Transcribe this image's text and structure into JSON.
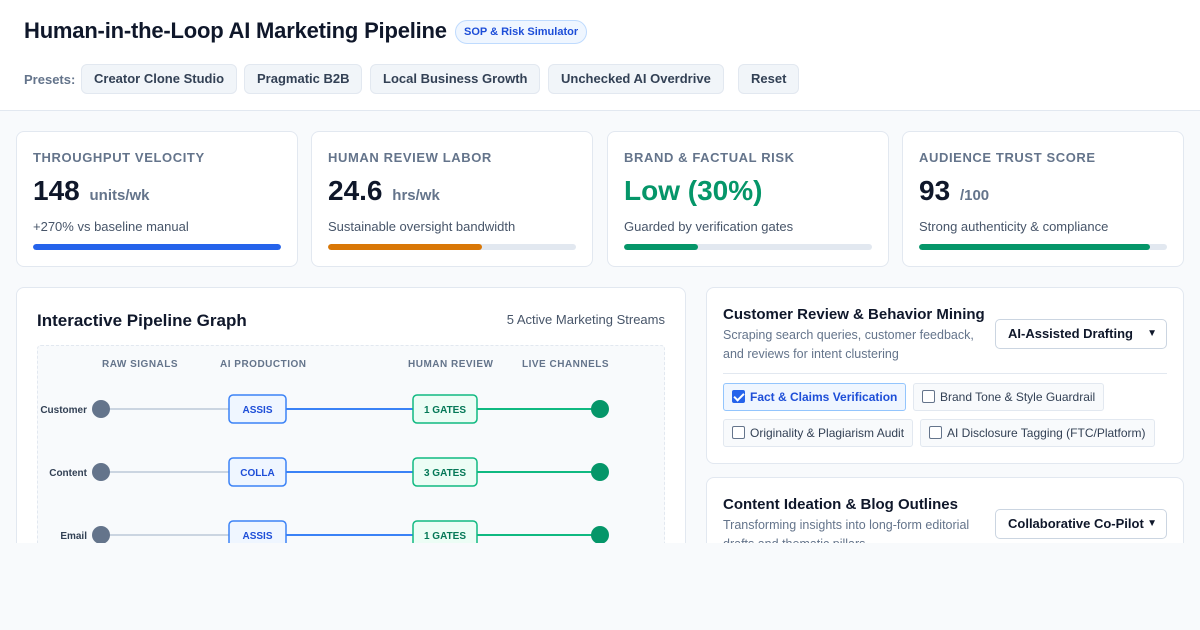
{
  "header": {
    "title": "Human-in-the-Loop AI Marketing Pipeline",
    "badge": "SOP & Risk Simulator",
    "presets_label": "Presets:",
    "presets": [
      "Creator Clone Studio",
      "Pragmatic B2B",
      "Local Business Growth",
      "Unchecked AI Overdrive"
    ],
    "reset_label": "Reset"
  },
  "metrics": [
    {
      "label": "Throughput Velocity",
      "value": "148",
      "unit": "units/wk",
      "sub": "+270% vs baseline manual",
      "level_pct": 100,
      "color": "#2563eb"
    },
    {
      "label": "Human Review Labor",
      "value": "24.6",
      "unit": "hrs/wk",
      "sub": "Sustainable oversight bandwidth",
      "level_pct": 62,
      "color": "#d97706"
    },
    {
      "label": "Brand & Factual Risk",
      "value": "Low (30%)",
      "unit": "",
      "sub": "Guarded by verification gates",
      "level_pct": 30,
      "color": "#059669"
    },
    {
      "label": "Audience Trust Score",
      "value": "93",
      "unit": "/100",
      "sub": "Strong authenticity & compliance",
      "level_pct": 93,
      "color": "#059669"
    }
  ],
  "graph": {
    "title": "Interactive Pipeline Graph",
    "meta": "5 Active Marketing Streams",
    "columns": [
      "RAW SIGNALS",
      "AI PRODUCTION",
      "HUMAN REVIEW",
      "LIVE CHANNELS"
    ],
    "streams": [
      {
        "name": "Customer",
        "ai": "ASSIS",
        "gates": "1 GATES"
      },
      {
        "name": "Content",
        "ai": "COLLA",
        "gates": "3 GATES"
      },
      {
        "name": "Email",
        "ai": "ASSIS",
        "gates": "1 GATES"
      }
    ]
  },
  "panels": [
    {
      "title": "Customer Review & Behavior Mining",
      "desc": "Scraping search queries, customer feedback, and reviews for intent clustering",
      "mode": "AI-Assisted Drafting",
      "checks": [
        {
          "label": "Fact & Claims Verification",
          "checked": true
        },
        {
          "label": "Brand Tone & Style Guardrail",
          "checked": false
        },
        {
          "label": "Originality & Plagiarism Audit",
          "checked": false
        },
        {
          "label": "AI Disclosure Tagging (FTC/Platform)",
          "checked": false
        }
      ]
    },
    {
      "title": "Content Ideation & Blog Outlines",
      "desc": "Transforming insights into long-form editorial drafts and thematic pillars",
      "mode": "Collaborative Co-Pilot"
    }
  ]
}
